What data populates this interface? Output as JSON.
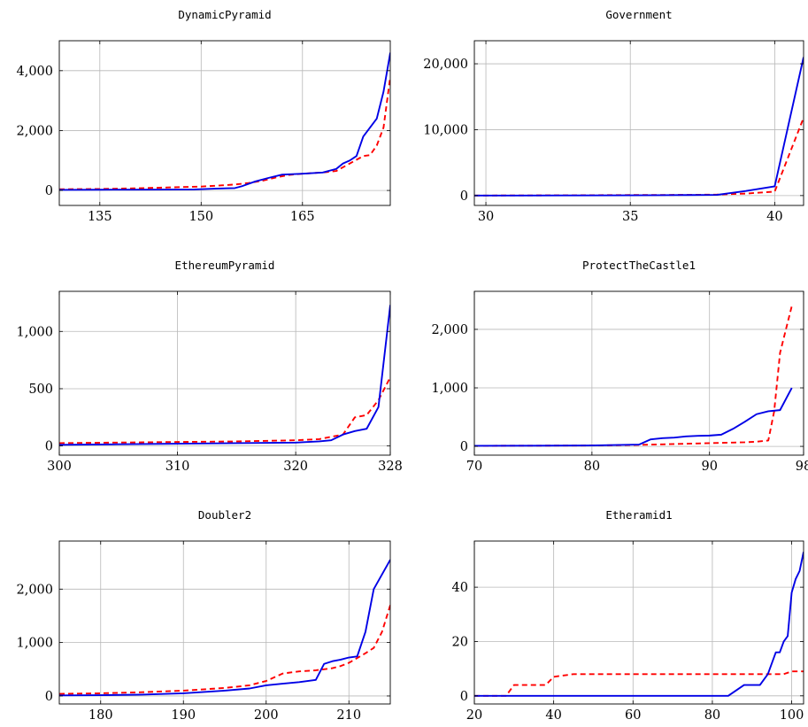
{
  "chart_data": [
    {
      "type": "line",
      "title": "DynamicPyramid",
      "xlim": [
        129,
        178
      ],
      "ylim": [
        -500,
        5000
      ],
      "xticks": [
        135,
        150,
        165
      ],
      "xtick_labels": [
        "135",
        "150",
        "165"
      ],
      "yticks": [
        0,
        2000,
        4000
      ],
      "ytick_labels": [
        "0",
        "2,000",
        "4,000"
      ],
      "grid": true,
      "series": [
        {
          "color": "#0000e6",
          "style": "solid",
          "x": [
            129,
            135,
            140,
            145,
            149,
            152,
            155,
            156,
            158,
            160,
            162,
            165,
            168,
            170,
            171,
            172,
            173,
            174,
            176,
            177,
            178
          ],
          "y": [
            20,
            25,
            28,
            30,
            35,
            60,
            80,
            140,
            300,
            420,
            530,
            560,
            600,
            720,
            900,
            1000,
            1150,
            1800,
            2400,
            3300,
            4600
          ]
        },
        {
          "color": "#ff0000",
          "style": "dashed",
          "x": [
            129,
            135,
            140,
            145,
            150,
            153,
            155,
            157,
            159,
            161,
            163,
            165,
            168,
            170,
            172,
            174,
            175,
            176,
            177,
            178
          ],
          "y": [
            40,
            50,
            70,
            100,
            130,
            170,
            200,
            250,
            320,
            430,
            520,
            560,
            600,
            650,
            900,
            1150,
            1180,
            1500,
            2100,
            3800
          ]
        }
      ]
    },
    {
      "type": "line",
      "title": "Government",
      "xlim": [
        29.6,
        41
      ],
      "ylim": [
        -1500,
        23500
      ],
      "xticks": [
        30,
        35,
        40
      ],
      "xtick_labels": [
        "30",
        "35",
        "40"
      ],
      "yticks": [
        0,
        10000,
        20000
      ],
      "ytick_labels": [
        "0",
        "10,000",
        "20,000"
      ],
      "grid": true,
      "series": [
        {
          "color": "#0000e6",
          "style": "solid",
          "x": [
            29.6,
            31,
            33,
            35,
            36,
            37,
            38,
            39,
            40,
            41
          ],
          "y": [
            0,
            0,
            20,
            40,
            60,
            80,
            100,
            700,
            1400,
            21000
          ]
        },
        {
          "color": "#ff0000",
          "style": "dashed",
          "x": [
            29.6,
            31,
            33,
            35,
            37,
            38,
            39,
            40,
            41
          ],
          "y": [
            0,
            20,
            40,
            80,
            100,
            150,
            300,
            600,
            11800
          ]
        }
      ]
    },
    {
      "type": "line",
      "title": "EthereumPyramid",
      "xlim": [
        300,
        328
      ],
      "ylim": [
        -80,
        1350
      ],
      "xticks": [
        300,
        310,
        320,
        328
      ],
      "xtick_labels": [
        "300",
        "310",
        "320",
        "328"
      ],
      "yticks": [
        0,
        500,
        1000
      ],
      "ytick_labels": [
        "0",
        "500",
        "1,000"
      ],
      "grid": true,
      "series": [
        {
          "color": "#0000e6",
          "style": "solid",
          "x": [
            300,
            305,
            310,
            315,
            320,
            322,
            323,
            324,
            325,
            326,
            327,
            328
          ],
          "y": [
            10,
            15,
            20,
            25,
            30,
            40,
            50,
            100,
            130,
            150,
            340,
            1230
          ]
        },
        {
          "color": "#ff0000",
          "style": "dashed",
          "x": [
            300,
            305,
            310,
            315,
            320,
            322,
            323,
            324,
            325,
            326,
            327,
            328
          ],
          "y": [
            25,
            30,
            35,
            40,
            50,
            60,
            80,
            100,
            250,
            270,
            400,
            600
          ]
        }
      ]
    },
    {
      "type": "line",
      "title": "ProtectTheCastle1",
      "xlim": [
        70,
        98
      ],
      "ylim": [
        -150,
        2650
      ],
      "xticks": [
        70,
        80,
        90,
        98
      ],
      "xtick_labels": [
        "70",
        "80",
        "90",
        "98"
      ],
      "yticks": [
        0,
        1000,
        2000
      ],
      "ytick_labels": [
        "0",
        "1,000",
        "2,000"
      ],
      "grid": true,
      "series": [
        {
          "color": "#0000e6",
          "style": "solid",
          "x": [
            70,
            75,
            80,
            84,
            85,
            86,
            87,
            88,
            89,
            90,
            91,
            92,
            93,
            94,
            95,
            96,
            97
          ],
          "y": [
            10,
            12,
            15,
            30,
            120,
            140,
            150,
            170,
            180,
            185,
            200,
            300,
            420,
            550,
            600,
            620,
            1000
          ]
        },
        {
          "color": "#ff0000",
          "style": "dashed",
          "x": [
            70,
            75,
            80,
            84,
            85,
            86,
            87,
            88,
            89,
            90,
            91,
            92,
            93,
            94,
            95,
            95.5,
            96,
            97
          ],
          "y": [
            10,
            12,
            15,
            25,
            30,
            35,
            40,
            45,
            50,
            55,
            60,
            65,
            70,
            80,
            100,
            600,
            1600,
            2400
          ]
        }
      ]
    },
    {
      "type": "line",
      "title": "Doubler2",
      "xlim": [
        175,
        215
      ],
      "ylim": [
        -150,
        2900
      ],
      "xticks": [
        180,
        190,
        200,
        210
      ],
      "xtick_labels": [
        "180",
        "190",
        "200",
        "210"
      ],
      "yticks": [
        0,
        1000,
        2000
      ],
      "ytick_labels": [
        "0",
        "1,000",
        "2,000"
      ],
      "grid": true,
      "series": [
        {
          "color": "#0000e6",
          "style": "solid",
          "x": [
            175,
            180,
            185,
            190,
            195,
            198,
            200,
            202,
            204,
            206,
            207,
            208,
            209,
            210,
            211,
            212,
            213,
            215
          ],
          "y": [
            10,
            15,
            25,
            50,
            100,
            140,
            200,
            230,
            260,
            300,
            600,
            650,
            680,
            720,
            740,
            1200,
            2000,
            2550
          ]
        },
        {
          "color": "#ff0000",
          "style": "dashed",
          "x": [
            175,
            180,
            185,
            190,
            195,
            198,
            200,
            202,
            204,
            206,
            207,
            208,
            209,
            210,
            212,
            213,
            214,
            215
          ],
          "y": [
            40,
            50,
            70,
            100,
            150,
            200,
            280,
            420,
            460,
            480,
            500,
            520,
            560,
            620,
            800,
            900,
            1200,
            1700
          ]
        }
      ]
    },
    {
      "type": "line",
      "title": "Etheramid1",
      "xlim": [
        20,
        103
      ],
      "ylim": [
        -3,
        57
      ],
      "xticks": [
        20,
        40,
        60,
        80,
        100
      ],
      "xtick_labels": [
        "20",
        "40",
        "60",
        "80",
        "100"
      ],
      "yticks": [
        0,
        20,
        40
      ],
      "ytick_labels": [
        "0",
        "20",
        "40"
      ],
      "grid": true,
      "series": [
        {
          "color": "#0000e6",
          "style": "solid",
          "x": [
            20,
            40,
            60,
            80,
            84,
            88,
            92,
            94,
            96,
            97,
            98,
            99,
            100,
            101,
            102,
            103
          ],
          "y": [
            0,
            0,
            0,
            0,
            0,
            4,
            4,
            8,
            16,
            16,
            20,
            22,
            38,
            43,
            46,
            53
          ]
        },
        {
          "color": "#ff0000",
          "style": "dashed",
          "x": [
            20,
            28,
            30,
            38,
            40,
            45,
            50,
            60,
            70,
            80,
            90,
            94,
            98,
            100,
            103
          ],
          "y": [
            0,
            0,
            4,
            4,
            7,
            8,
            8,
            8,
            8,
            8,
            8,
            8,
            8,
            9,
            9
          ]
        }
      ]
    }
  ]
}
